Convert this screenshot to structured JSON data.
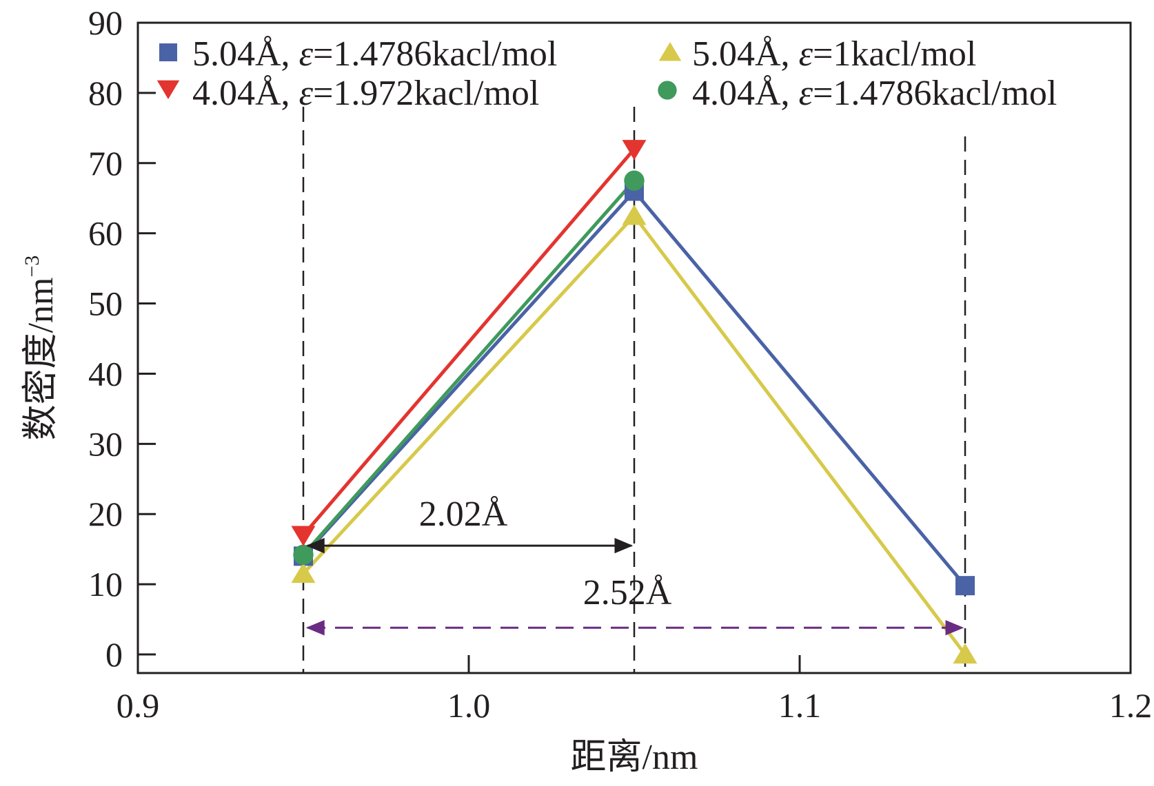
{
  "chart_data": {
    "type": "line",
    "title": "",
    "xlabel": "距离/nm",
    "ylabel": {
      "main": "数密度/nm",
      "sup": "−3"
    },
    "xlim": [
      0.9,
      1.2
    ],
    "ylim": [
      0,
      90
    ],
    "x_ticks": [
      "0.9",
      "1.0",
      "1.1",
      "1.2"
    ],
    "y_ticks": [
      "0",
      "10",
      "20",
      "30",
      "40",
      "50",
      "60",
      "70",
      "80",
      "90"
    ],
    "grid": false,
    "legend_position": "top",
    "series": [
      {
        "name": {
          "pre": "5.04Å, ",
          "eps": "ε",
          "post": "=1.4786kacl/mol"
        },
        "color": "#4a62a6",
        "marker": "square",
        "x": [
          0.95,
          1.05,
          1.15
        ],
        "y": [
          14,
          66,
          9.8
        ]
      },
      {
        "name": {
          "pre": "5.04Å, ",
          "eps": "ε",
          "post": "=1kacl/mol"
        },
        "color": "#d7c94a",
        "marker": "triangle-up",
        "x": [
          0.95,
          1.05,
          1.15
        ],
        "y": [
          11.5,
          62.5,
          0
        ]
      },
      {
        "name": {
          "pre": "4.04Å, ",
          "eps": "ε",
          "post": "=1.972kacl/mol"
        },
        "color": "#e3342f",
        "marker": "triangle-down",
        "x": [
          0.95,
          1.05
        ],
        "y": [
          17,
          72
        ]
      },
      {
        "name": {
          "pre": "4.04Å, ",
          "eps": "ε",
          "post": "=1.4786kacl/mol"
        },
        "color": "#3f9a5c",
        "marker": "circle",
        "x": [
          0.95,
          1.05
        ],
        "y": [
          14.2,
          67.5
        ]
      }
    ],
    "reference_lines_x": [
      0.95,
      1.05,
      1.15
    ],
    "annotations": [
      {
        "label": "2.02Å",
        "from_x": 0.95,
        "to_x": 1.05,
        "y": 15.5,
        "color": "#231f20",
        "style": "solid"
      },
      {
        "label": "2.52Å",
        "from_x": 0.95,
        "to_x": 1.15,
        "y": 3.8,
        "color": "#6a2c83",
        "style": "dashed"
      }
    ]
  }
}
